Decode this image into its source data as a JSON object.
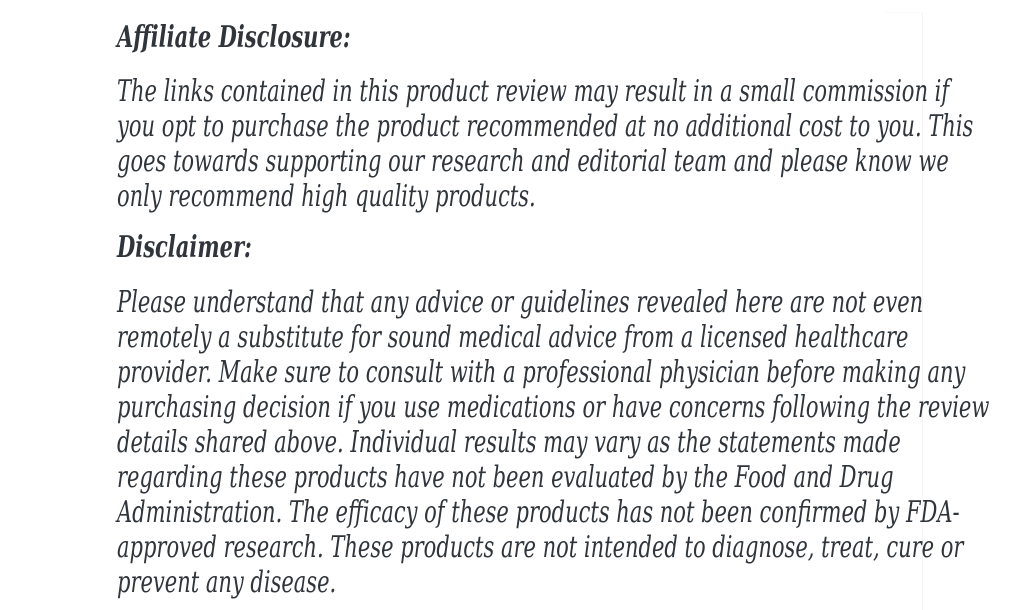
{
  "page": {
    "background_color": "#ffffff",
    "text_color": "#2f353a",
    "hairline_color": "#f5f5f5"
  },
  "article": {
    "affiliate": {
      "heading": "Affiliate Disclosure:",
      "lines": [
        "The links contained in this product review may result in a small commission if",
        "you opt to purchase the product recommended at no additional cost to you. This",
        "goes towards supporting our research and editorial team and please know we",
        "only recommend high quality products."
      ]
    },
    "disclaimer": {
      "heading": "Disclaimer:",
      "lines": [
        "Please understand that any advice or guidelines revealed here are not even",
        "remotely a substitute for sound medical advice from a licensed healthcare",
        "provider. Make sure to consult with a professional physician before making any",
        "purchasing decision if you use medications or have concerns following the review",
        "details shared above. Individual results may vary as the statements made",
        "regarding these products have not been evaluated by the Food and Drug",
        "Administration. The efficacy of these products has not been confirmed by FDA-",
        "approved research. These products are not intended to diagnose, treat, cure or",
        "prevent any disease."
      ]
    }
  }
}
